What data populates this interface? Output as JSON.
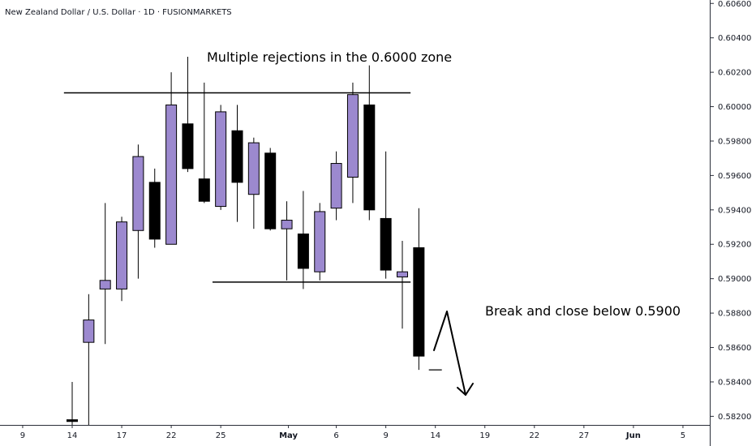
{
  "chart_data": {
    "type": "candlestick",
    "title": "New Zealand Dollar / U.S. Dollar · 1D · FUSIONMARKETS",
    "ylim": [
      0.5815,
      0.6062
    ],
    "y_ticks": [
      "0.60600",
      "0.60400",
      "0.60200",
      "0.60000",
      "0.59800",
      "0.59600",
      "0.59400",
      "0.59200",
      "0.59000",
      "0.58800",
      "0.58600",
      "0.58400",
      "0.58200"
    ],
    "y_tick_values": [
      0.606,
      0.604,
      0.602,
      0.6,
      0.598,
      0.596,
      0.594,
      0.592,
      0.59,
      0.588,
      0.586,
      0.584,
      0.582
    ],
    "x_ticks": [
      {
        "label": "9",
        "bar": -3
      },
      {
        "label": "14",
        "bar": 0
      },
      {
        "label": "17",
        "bar": 3
      },
      {
        "label": "22",
        "bar": 6
      },
      {
        "label": "25",
        "bar": 9
      },
      {
        "label": "May",
        "bar": 13.1,
        "bold": true
      },
      {
        "label": "6",
        "bar": 16
      },
      {
        "label": "9",
        "bar": 19
      },
      {
        "label": "14",
        "bar": 22
      },
      {
        "label": "19",
        "bar": 25
      },
      {
        "label": "22",
        "bar": 28
      },
      {
        "label": "27",
        "bar": 31
      },
      {
        "label": "Jun",
        "bar": 34,
        "bold": true
      },
      {
        "label": "5",
        "bar": 37
      }
    ],
    "candles": [
      {
        "o": 0.5818,
        "h": 0.584,
        "l": 0.5815,
        "c": 0.5817
      },
      {
        "o": 0.5863,
        "h": 0.5891,
        "l": 0.5815,
        "c": 0.5876
      },
      {
        "o": 0.5894,
        "h": 0.5944,
        "l": 0.5862,
        "c": 0.5899
      },
      {
        "o": 0.5894,
        "h": 0.5936,
        "l": 0.5887,
        "c": 0.5933
      },
      {
        "o": 0.5928,
        "h": 0.5978,
        "l": 0.59,
        "c": 0.5971
      },
      {
        "o": 0.5956,
        "h": 0.5964,
        "l": 0.5918,
        "c": 0.5923
      },
      {
        "o": 0.592,
        "h": 0.602,
        "l": 0.592,
        "c": 0.6001
      },
      {
        "o": 0.599,
        "h": 0.6029,
        "l": 0.5962,
        "c": 0.5964
      },
      {
        "o": 0.5958,
        "h": 0.6014,
        "l": 0.5944,
        "c": 0.5945
      },
      {
        "o": 0.5942,
        "h": 0.6001,
        "l": 0.594,
        "c": 0.5997
      },
      {
        "o": 0.5986,
        "h": 0.6001,
        "l": 0.5933,
        "c": 0.5956
      },
      {
        "o": 0.5949,
        "h": 0.5982,
        "l": 0.5929,
        "c": 0.5979
      },
      {
        "o": 0.5973,
        "h": 0.5976,
        "l": 0.5928,
        "c": 0.5929
      },
      {
        "o": 0.5929,
        "h": 0.5945,
        "l": 0.5899,
        "c": 0.5934
      },
      {
        "o": 0.5926,
        "h": 0.5951,
        "l": 0.5894,
        "c": 0.5906
      },
      {
        "o": 0.5904,
        "h": 0.5944,
        "l": 0.5899,
        "c": 0.5939
      },
      {
        "o": 0.5941,
        "h": 0.5974,
        "l": 0.5934,
        "c": 0.5967
      },
      {
        "o": 0.5959,
        "h": 0.6014,
        "l": 0.5944,
        "c": 0.6007
      },
      {
        "o": 0.6001,
        "h": 0.6024,
        "l": 0.5934,
        "c": 0.594
      },
      {
        "o": 0.5935,
        "h": 0.5974,
        "l": 0.59,
        "c": 0.5905
      },
      {
        "o": 0.5901,
        "h": 0.5922,
        "l": 0.5871,
        "c": 0.5904
      },
      {
        "o": 0.5918,
        "h": 0.5941,
        "l": 0.5847,
        "c": 0.5855
      },
      {
        "o": 0.5847,
        "h": 0.5847,
        "l": 0.5847,
        "c": 0.5847
      }
    ],
    "colors": {
      "up": "#9c89cf",
      "down": "#000000",
      "border": "#000000"
    },
    "levels": [
      {
        "value": 0.6008,
        "from_bar": -0.5,
        "to_bar": 20.5
      },
      {
        "value": 0.5898,
        "from_bar": 8.5,
        "to_bar": 20.5
      }
    ],
    "annotations": [
      {
        "text": "Multiple rejections in the 0.6000 zone"
      },
      {
        "text": "Break and close below 0.5900"
      }
    ],
    "grid": false
  }
}
